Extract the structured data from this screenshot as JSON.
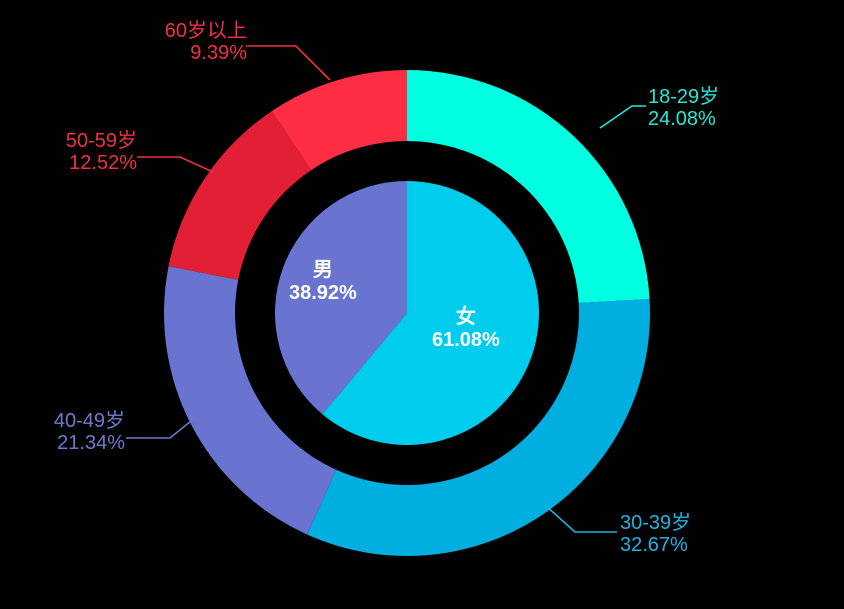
{
  "chart_data": {
    "type": "pie",
    "rings": [
      {
        "ring": "inner",
        "slices": [
          {
            "label": "女",
            "value": 61.08,
            "value_text": "61.08%",
            "color": "#00CCEE"
          },
          {
            "label": "男",
            "value": 38.92,
            "value_text": "38.92%",
            "color": "#6874CF"
          }
        ]
      },
      {
        "ring": "outer",
        "slices": [
          {
            "label": "18-29岁",
            "value": 24.08,
            "value_text": "24.08%",
            "color": "#00FFE1",
            "label_color": "#22E8DC"
          },
          {
            "label": "30-39岁",
            "value": 32.67,
            "value_text": "32.67%",
            "color": "#00AEDF",
            "label_color": "#1CB4E4"
          },
          {
            "label": "40-49岁",
            "value": 21.34,
            "value_text": "21.34%",
            "color": "#6874CF",
            "label_color": "#7079CF"
          },
          {
            "label": "50-59岁",
            "value": 12.52,
            "value_text": "12.52%",
            "color": "#E21F35",
            "label_color": "#F0323F"
          },
          {
            "label": "60岁以上",
            "value": 9.39,
            "value_text": "9.39%",
            "color": "#FF2E45",
            "label_color": "#F0323F"
          }
        ]
      }
    ],
    "start_angle": "12 o'clock",
    "direction": "clockwise",
    "legend": "none",
    "background": "#000000"
  }
}
